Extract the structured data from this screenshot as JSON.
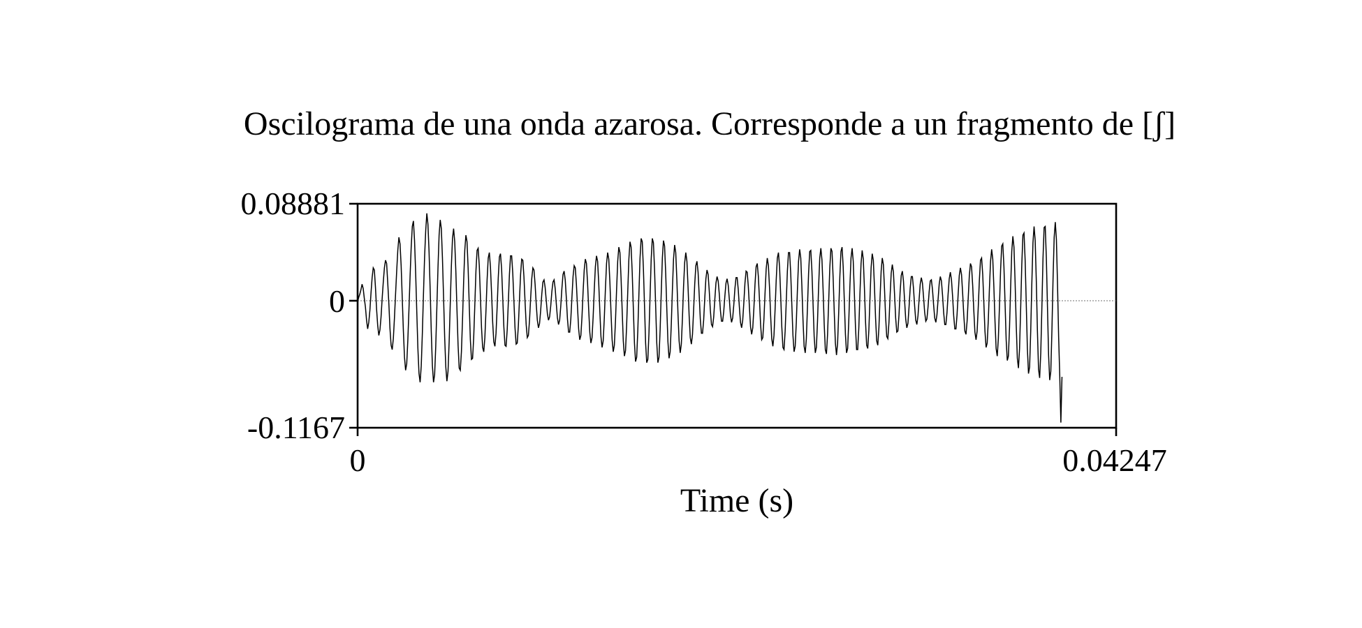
{
  "chart_data": {
    "type": "line",
    "title": "Oscilograma de una onda azarosa. Corresponde a un fragmento de [ʃ]",
    "xlabel": "Time (s)",
    "ylabel": "",
    "xlim": [
      0,
      0.04247
    ],
    "ylim": [
      -0.1167,
      0.08881
    ],
    "x_ticks": [
      "0",
      "0.04247"
    ],
    "y_ticks": [
      "0.08881",
      "0",
      "-0.1167"
    ],
    "grid": false,
    "zero_line": true,
    "line_color": "#000000",
    "series": [
      {
        "x_start": 0,
        "x_step": 6.25e-05,
        "values": [
          -0.001,
          0.003,
          0.006,
          0.01,
          0.015,
          0.011,
          0.002,
          -0.006,
          -0.018,
          -0.026,
          -0.02,
          -0.009,
          0.007,
          0.021,
          0.03,
          0.028,
          0.012,
          -0.008,
          -0.023,
          -0.032,
          -0.027,
          -0.015,
          0.002,
          0.017,
          0.03,
          0.037,
          0.034,
          0.016,
          -0.003,
          -0.026,
          -0.041,
          -0.045,
          -0.035,
          -0.016,
          0.006,
          0.027,
          0.046,
          0.058,
          0.052,
          0.032,
          0.002,
          -0.028,
          -0.052,
          -0.064,
          -0.058,
          -0.036,
          -0.008,
          0.022,
          0.049,
          0.068,
          0.073,
          0.055,
          0.025,
          -0.01,
          -0.044,
          -0.067,
          -0.075,
          -0.06,
          -0.03,
          0.006,
          0.04,
          0.064,
          0.08,
          0.07,
          0.045,
          0.01,
          -0.029,
          -0.06,
          -0.075,
          -0.068,
          -0.042,
          -0.006,
          0.03,
          0.06,
          0.074,
          0.066,
          0.039,
          0.003,
          -0.034,
          -0.061,
          -0.074,
          -0.065,
          -0.038,
          -0.003,
          0.032,
          0.057,
          0.066,
          0.054,
          0.027,
          -0.008,
          -0.041,
          -0.062,
          -0.064,
          -0.047,
          -0.017,
          0.018,
          0.046,
          0.06,
          0.054,
          0.03,
          -0.004,
          -0.036,
          -0.054,
          -0.053,
          -0.034,
          -0.004,
          0.027,
          0.046,
          0.048,
          0.032,
          0.004,
          -0.025,
          -0.043,
          -0.047,
          -0.034,
          -0.009,
          0.019,
          0.039,
          0.044,
          0.031,
          0.007,
          -0.02,
          -0.038,
          -0.042,
          -0.03,
          -0.006,
          0.021,
          0.04,
          0.043,
          0.029,
          0.003,
          -0.024,
          -0.041,
          -0.042,
          -0.027,
          -0.002,
          0.024,
          0.041,
          0.041,
          0.025,
          0.0,
          -0.025,
          -0.04,
          -0.039,
          -0.023,
          0.001,
          0.024,
          0.038,
          0.037,
          0.022,
          -0.001,
          -0.022,
          -0.034,
          -0.032,
          -0.018,
          0.002,
          0.02,
          0.03,
          0.028,
          0.015,
          -0.003,
          -0.018,
          -0.025,
          -0.021,
          -0.009,
          0.006,
          0.017,
          0.019,
          0.012,
          0.0,
          -0.012,
          -0.018,
          -0.015,
          -0.005,
          0.008,
          0.017,
          0.019,
          0.011,
          -0.003,
          -0.016,
          -0.022,
          -0.018,
          -0.005,
          0.011,
          0.024,
          0.027,
          0.019,
          0.002,
          -0.017,
          -0.029,
          -0.029,
          -0.017,
          0.003,
          0.022,
          0.032,
          0.03,
          0.015,
          -0.006,
          -0.026,
          -0.036,
          -0.032,
          -0.015,
          0.008,
          0.028,
          0.038,
          0.034,
          0.016,
          -0.008,
          -0.029,
          -0.039,
          -0.034,
          -0.015,
          0.01,
          0.031,
          0.041,
          0.036,
          0.016,
          -0.01,
          -0.033,
          -0.043,
          -0.037,
          -0.016,
          0.011,
          0.034,
          0.044,
          0.038,
          0.017,
          -0.011,
          -0.036,
          -0.047,
          -0.041,
          -0.019,
          0.01,
          0.036,
          0.049,
          0.044,
          0.021,
          -0.009,
          -0.037,
          -0.051,
          -0.046,
          -0.023,
          0.008,
          0.038,
          0.054,
          0.049,
          0.026,
          -0.007,
          -0.039,
          -0.056,
          -0.052,
          -0.028,
          0.006,
          0.039,
          0.057,
          0.054,
          0.03,
          -0.004,
          -0.039,
          -0.057,
          -0.054,
          -0.03,
          0.004,
          0.038,
          0.057,
          0.053,
          0.029,
          -0.005,
          -0.039,
          -0.057,
          -0.052,
          -0.027,
          0.007,
          0.039,
          0.055,
          0.05,
          0.025,
          -0.008,
          -0.038,
          -0.053,
          -0.047,
          -0.022,
          0.01,
          0.038,
          0.051,
          0.044,
          0.019,
          -0.012,
          -0.037,
          -0.048,
          -0.04,
          -0.016,
          0.013,
          0.035,
          0.044,
          0.036,
          0.013,
          -0.014,
          -0.034,
          -0.04,
          -0.031,
          -0.009,
          0.015,
          0.032,
          0.036,
          0.026,
          0.005,
          -0.017,
          -0.03,
          -0.03,
          -0.018,
          0.002,
          0.02,
          0.028,
          0.024,
          0.009,
          -0.009,
          -0.022,
          -0.024,
          -0.015,
          0.001,
          0.016,
          0.022,
          0.018,
          0.006,
          -0.009,
          -0.019,
          -0.019,
          -0.01,
          0.004,
          0.016,
          0.02,
          0.014,
          0.001,
          -0.013,
          -0.02,
          -0.016,
          -0.004,
          0.011,
          0.021,
          0.021,
          0.01,
          -0.006,
          -0.02,
          -0.025,
          -0.018,
          -0.002,
          0.016,
          0.027,
          0.026,
          0.013,
          -0.006,
          -0.024,
          -0.031,
          -0.025,
          -0.007,
          0.015,
          0.031,
          0.034,
          0.022,
          0.001,
          -0.022,
          -0.036,
          -0.034,
          -0.017,
          0.007,
          0.029,
          0.039,
          0.032,
          0.012,
          -0.014,
          -0.035,
          -0.042,
          -0.032,
          -0.008,
          0.019,
          0.039,
          0.044,
          0.031,
          0.005,
          -0.024,
          -0.043,
          -0.045,
          -0.028,
          -0.001,
          0.027,
          0.044,
          0.044,
          0.025,
          -0.004,
          -0.032,
          -0.047,
          -0.042,
          -0.02,
          0.01,
          0.036,
          0.047,
          0.039,
          0.013,
          -0.018,
          -0.042,
          -0.048,
          -0.035,
          -0.006,
          0.025,
          0.045,
          0.046,
          0.027,
          -0.003,
          -0.033,
          -0.048,
          -0.043,
          -0.019,
          0.013,
          0.039,
          0.048,
          0.037,
          0.01,
          -0.022,
          -0.045,
          -0.049,
          -0.031,
          -0.001,
          0.03,
          0.048,
          0.045,
          0.021,
          -0.011,
          -0.039,
          -0.05,
          -0.039,
          -0.01,
          0.022,
          0.045,
          0.049,
          0.031,
          0.0,
          -0.031,
          -0.048,
          -0.044,
          -0.019,
          0.013,
          0.039,
          0.048,
          0.036,
          0.007,
          -0.024,
          -0.045,
          -0.045,
          -0.025,
          0.006,
          0.034,
          0.046,
          0.038,
          0.012,
          -0.019,
          -0.041,
          -0.044,
          -0.027,
          0.002,
          0.03,
          0.043,
          0.037,
          0.013,
          -0.016,
          -0.037,
          -0.041,
          -0.025,
          0.002,
          0.027,
          0.039,
          0.033,
          0.011,
          -0.015,
          -0.033,
          -0.035,
          -0.02,
          0.004,
          0.025,
          0.033,
          0.026,
          0.006,
          -0.016,
          -0.029,
          -0.028,
          -0.013,
          0.008,
          0.023,
          0.027,
          0.018,
          0.0,
          -0.017,
          -0.025,
          -0.021,
          -0.006,
          0.011,
          0.022,
          0.022,
          0.011,
          -0.005,
          -0.018,
          -0.022,
          -0.014,
          0.001,
          0.015,
          0.021,
          0.016,
          0.003,
          -0.011,
          -0.019,
          -0.017,
          -0.006,
          0.008,
          0.018,
          0.019,
          0.01,
          -0.004,
          -0.016,
          -0.02,
          -0.013,
          0.001,
          0.015,
          0.022,
          0.018,
          0.005,
          -0.011,
          -0.022,
          -0.022,
          -0.011,
          0.006,
          0.02,
          0.026,
          0.019,
          0.004,
          -0.014,
          -0.026,
          -0.026,
          -0.013,
          0.006,
          0.023,
          0.03,
          0.024,
          0.007,
          -0.013,
          -0.028,
          -0.031,
          -0.019,
          0.002,
          0.023,
          0.034,
          0.031,
          0.014,
          -0.009,
          -0.029,
          -0.036,
          -0.028,
          -0.006,
          0.019,
          0.037,
          0.039,
          0.024,
          -0.002,
          -0.028,
          -0.043,
          -0.039,
          -0.018,
          0.011,
          0.036,
          0.047,
          0.038,
          0.012,
          -0.019,
          -0.044,
          -0.051,
          -0.035,
          -0.005,
          0.028,
          0.05,
          0.052,
          0.031,
          -0.002,
          -0.036,
          -0.055,
          -0.051,
          -0.025,
          0.012,
          0.045,
          0.059,
          0.049,
          0.017,
          -0.022,
          -0.053,
          -0.062,
          -0.044,
          -0.007,
          0.033,
          0.06,
          0.062,
          0.037,
          -0.003,
          -0.044,
          -0.067,
          -0.061,
          -0.028,
          0.016,
          0.053,
          0.068,
          0.055,
          0.018,
          -0.028,
          -0.063,
          -0.071,
          -0.048,
          -0.006,
          0.039,
          0.067,
          0.068,
          0.039,
          -0.006,
          -0.05,
          -0.073,
          -0.065,
          -0.027,
          0.02,
          0.058,
          0.072,
          0.056,
          0.015,
          -0.033,
          -0.069,
          -0.112,
          -0.07
        ]
      }
    ]
  }
}
